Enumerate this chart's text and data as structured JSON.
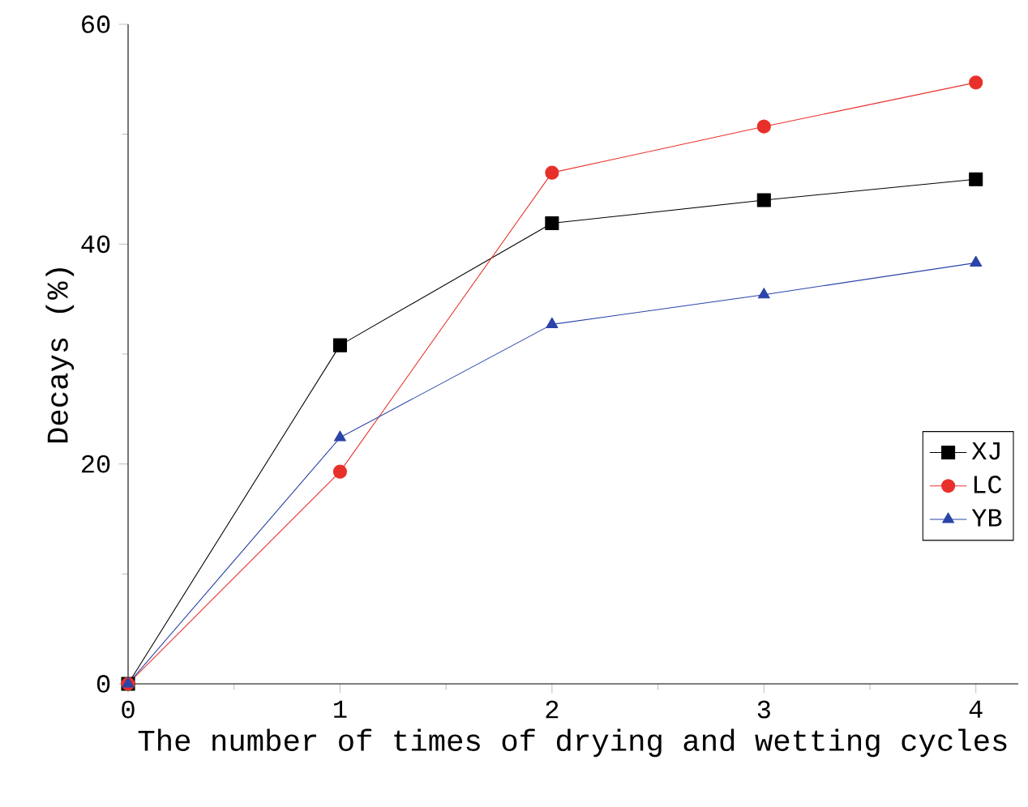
{
  "chart_data": {
    "type": "line",
    "xlabel": "The number of times of drying and wetting cycles",
    "ylabel": "Decays (%)",
    "x": [
      0,
      1,
      2,
      3,
      4
    ],
    "series": [
      {
        "name": "XJ",
        "color": "#000000",
        "marker": "square",
        "values": [
          0,
          30.8,
          41.9,
          44.0,
          45.9
        ]
      },
      {
        "name": "LC",
        "color": "#e8302a",
        "marker": "circle",
        "values": [
          0,
          19.3,
          46.5,
          50.7,
          54.7
        ]
      },
      {
        "name": "YB",
        "color": "#2b44a8",
        "marker": "triangle",
        "values": [
          0,
          22.4,
          32.7,
          35.4,
          38.3
        ]
      }
    ],
    "xlim": [
      0,
      4.2
    ],
    "ylim": [
      0,
      60
    ],
    "xticks": [
      0,
      1,
      2,
      3,
      4
    ],
    "yticks": [
      0,
      20,
      40,
      60
    ],
    "grid": false,
    "legend": "right",
    "line_style": "solid"
  }
}
